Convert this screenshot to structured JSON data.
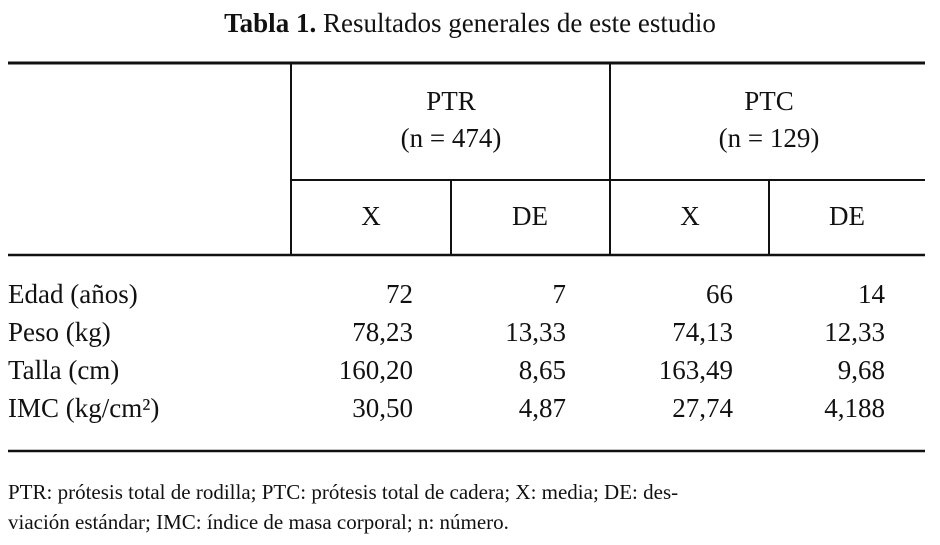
{
  "title": {
    "label": "Tabla 1.",
    "text": "Resultados generales de este estudio"
  },
  "table": {
    "groups": [
      {
        "name": "PTR",
        "n": "(n = 474)"
      },
      {
        "name": "PTC",
        "n": "(n = 129)"
      }
    ],
    "subheaders": [
      "X",
      "DE",
      "X",
      "DE"
    ],
    "rows": [
      [
        "Edad (años)",
        "72",
        "7",
        "66",
        "14"
      ],
      [
        "Peso (kg)",
        "78,23",
        "13,33",
        "74,13",
        "12,33"
      ],
      [
        "Talla (cm)",
        "160,20",
        "8,65",
        "163,49",
        "9,68"
      ],
      [
        "IMC (kg/cm²)",
        "30,50",
        "4,87",
        "27,74",
        "4,188"
      ]
    ]
  },
  "footnote": [
    "PTR: prótesis total de rodilla; PTC: prótesis total de cadera; X: media; DE: des-",
    "viación estándar; IMC: índice de masa corporal; n: número."
  ]
}
